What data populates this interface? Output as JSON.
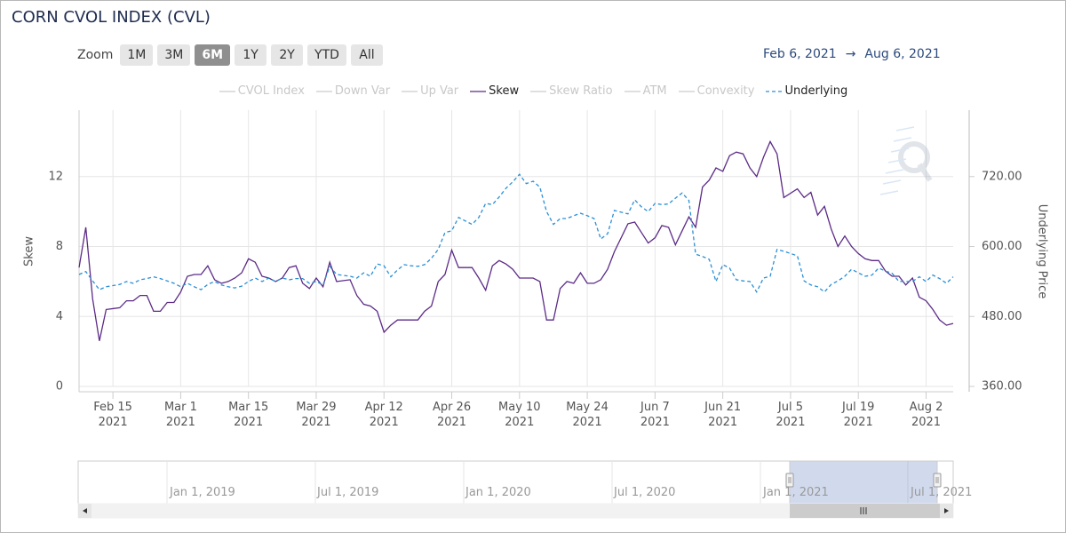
{
  "chart_data": {
    "type": "line",
    "title": "CORN CVOL INDEX (CVL)",
    "x": [
      "2021-02-08",
      "2021-02-09",
      "2021-02-10",
      "2021-02-11",
      "2021-02-12",
      "2021-02-16",
      "2021-02-17",
      "2021-02-18",
      "2021-02-19",
      "2021-02-22",
      "2021-02-23",
      "2021-02-24",
      "2021-02-25",
      "2021-02-26",
      "2021-03-01",
      "2021-03-02",
      "2021-03-03",
      "2021-03-04",
      "2021-03-05",
      "2021-03-08",
      "2021-03-09",
      "2021-03-10",
      "2021-03-11",
      "2021-03-12",
      "2021-03-15",
      "2021-03-16",
      "2021-03-17",
      "2021-03-18",
      "2021-03-19",
      "2021-03-22",
      "2021-03-23",
      "2021-03-24",
      "2021-03-25",
      "2021-03-26",
      "2021-03-29",
      "2021-03-30",
      "2021-03-31",
      "2021-04-01",
      "2021-04-05",
      "2021-04-06",
      "2021-04-07",
      "2021-04-08",
      "2021-04-09",
      "2021-04-12",
      "2021-04-13",
      "2021-04-14",
      "2021-04-15",
      "2021-04-16",
      "2021-04-19",
      "2021-04-20",
      "2021-04-21",
      "2021-04-22",
      "2021-04-23",
      "2021-04-26",
      "2021-04-27",
      "2021-04-28",
      "2021-04-29",
      "2021-04-30",
      "2021-05-03",
      "2021-05-04",
      "2021-05-05",
      "2021-05-06",
      "2021-05-07",
      "2021-05-10",
      "2021-05-11",
      "2021-05-12",
      "2021-05-13",
      "2021-05-14",
      "2021-05-17",
      "2021-05-18",
      "2021-05-19",
      "2021-05-20",
      "2021-05-21",
      "2021-05-24",
      "2021-05-25",
      "2021-05-26",
      "2021-05-27",
      "2021-05-28",
      "2021-06-01",
      "2021-06-02",
      "2021-06-03",
      "2021-06-04",
      "2021-06-07",
      "2021-06-08",
      "2021-06-09",
      "2021-06-10",
      "2021-06-11",
      "2021-06-14",
      "2021-06-15",
      "2021-06-16",
      "2021-06-17",
      "2021-06-18",
      "2021-06-21",
      "2021-06-22",
      "2021-06-23",
      "2021-06-24",
      "2021-06-25",
      "2021-06-28",
      "2021-06-29",
      "2021-06-30",
      "2021-07-01",
      "2021-07-02",
      "2021-07-06",
      "2021-07-07",
      "2021-07-08",
      "2021-07-09",
      "2021-07-12",
      "2021-07-13",
      "2021-07-14",
      "2021-07-15",
      "2021-07-16",
      "2021-07-19",
      "2021-07-20",
      "2021-07-21",
      "2021-07-22",
      "2021-07-23",
      "2021-07-26",
      "2021-07-27",
      "2021-07-28",
      "2021-07-29",
      "2021-07-30",
      "2021-08-02",
      "2021-08-03",
      "2021-08-04",
      "2021-08-05",
      "2021-08-06"
    ],
    "xlim": [
      "2021-02-08",
      "2021-08-06"
    ],
    "xticks": [
      {
        "value": "2021-02-15",
        "label": "Feb 15\n2021"
      },
      {
        "value": "2021-03-01",
        "label": "Mar 1\n2021"
      },
      {
        "value": "2021-03-15",
        "label": "Mar 15\n2021"
      },
      {
        "value": "2021-03-29",
        "label": "Mar 29\n2021"
      },
      {
        "value": "2021-04-12",
        "label": "Apr 12\n2021"
      },
      {
        "value": "2021-04-26",
        "label": "Apr 26\n2021"
      },
      {
        "value": "2021-05-10",
        "label": "May 10\n2021"
      },
      {
        "value": "2021-05-24",
        "label": "May 24\n2021"
      },
      {
        "value": "2021-06-07",
        "label": "Jun 7\n2021"
      },
      {
        "value": "2021-06-21",
        "label": "Jun 21\n2021"
      },
      {
        "value": "2021-07-05",
        "label": "Jul 5\n2021"
      },
      {
        "value": "2021-07-19",
        "label": "Jul 19\n2021"
      },
      {
        "value": "2021-08-02",
        "label": "Aug 2\n2021"
      }
    ],
    "ylabel": "Skew",
    "y2label": "Underlying Price",
    "ylim": [
      0,
      15.8
    ],
    "yticks": [
      0,
      4,
      8,
      12
    ],
    "y2lim": [
      360,
      834
    ],
    "y2ticks": [
      {
        "value": 360,
        "label": "360.00"
      },
      {
        "value": 480,
        "label": "480.00"
      },
      {
        "value": 600,
        "label": "600.00"
      },
      {
        "value": 720,
        "label": "720.00"
      }
    ],
    "grid": true,
    "legend_position": "top",
    "series": [
      {
        "name": "CVOL Index",
        "visible": false
      },
      {
        "name": "Down Var",
        "visible": false
      },
      {
        "name": "Up Var",
        "visible": false
      },
      {
        "name": "Skew",
        "visible": true,
        "color": "#5b2a86",
        "values": [
          6.8,
          9.1,
          5.0,
          2.6,
          4.4,
          4.5,
          4.9,
          4.9,
          5.2,
          5.2,
          4.3,
          4.3,
          4.8,
          4.8,
          5.4,
          6.3,
          6.4,
          6.4,
          6.9,
          6.1,
          5.9,
          6.0,
          6.2,
          6.5,
          7.3,
          7.1,
          6.3,
          6.2,
          6.0,
          6.2,
          6.8,
          6.9,
          5.9,
          5.6,
          6.2,
          5.7,
          7.1,
          6.0,
          6.1,
          5.2,
          4.7,
          4.6,
          4.3,
          3.1,
          3.5,
          3.8,
          3.8,
          3.8,
          3.8,
          4.3,
          4.6,
          6.0,
          6.4,
          7.8,
          6.8,
          6.8,
          6.8,
          6.2,
          5.5,
          6.9,
          7.2,
          7.0,
          6.7,
          6.2,
          6.2,
          6.2,
          6.0,
          3.8,
          3.8,
          5.6,
          6.0,
          5.9,
          6.5,
          5.9,
          5.9,
          6.1,
          6.7,
          7.7,
          9.3,
          9.4,
          8.8,
          8.2,
          8.5,
          9.2,
          9.1,
          8.1,
          8.9,
          9.7,
          9.1,
          11.4,
          11.8,
          12.5,
          12.3,
          13.2,
          13.4,
          13.3,
          12.5,
          12.0,
          13.1,
          14.0,
          13.3,
          10.8,
          11.3,
          10.8,
          11.1,
          9.8,
          10.3,
          9.0,
          8.0,
          8.6,
          8.0,
          7.6,
          7.3,
          7.2,
          7.2,
          6.6,
          6.3,
          6.3,
          5.8,
          6.2,
          5.1,
          4.9,
          4.4,
          3.8,
          3.5,
          3.6
        ]
      },
      {
        "name": "Skew Ratio",
        "visible": false
      },
      {
        "name": "ATM",
        "visible": false
      },
      {
        "name": "Convexity",
        "visible": false
      },
      {
        "name": "Underlying",
        "visible": true,
        "color": "#2a8fd6",
        "dashed": true,
        "axis": "y2",
        "values": [
          552,
          557,
          541,
          526,
          531,
          535,
          540,
          537,
          543,
          545,
          548,
          545,
          541,
          537,
          531,
          537,
          531,
          526,
          535,
          540,
          534,
          531,
          529,
          532,
          540,
          546,
          540,
          546,
          540,
          546,
          543,
          545,
          545,
          537,
          540,
          534,
          566,
          552,
          549,
          546,
          555,
          549,
          570,
          567,
          548,
          560,
          569,
          567,
          566,
          569,
          580,
          595,
          624,
          627,
          650,
          644,
          638,
          650,
          674,
          672,
          685,
          700,
          711,
          724,
          708,
          712,
          702,
          660,
          638,
          648,
          648,
          653,
          657,
          653,
          648,
          613,
          622,
          662,
          656,
          680,
          668,
          660,
          674,
          672,
          673,
          683,
          692,
          679,
          587,
          583,
          578,
          540,
          569,
          563,
          543,
          541,
          540,
          522,
          546,
          549,
          595,
          592,
          584,
          541,
          534,
          531,
          522,
          535,
          541,
          549,
          561,
          555,
          549,
          551,
          563,
          558,
          554,
          540,
          540,
          540,
          548,
          540,
          551,
          545,
          537,
          548
        ]
      }
    ]
  },
  "ui": {
    "zoom_label": "Zoom",
    "zoom_buttons": [
      "1M",
      "3M",
      "6M",
      "1Y",
      "2Y",
      "YTD",
      "All"
    ],
    "zoom_selected": 2,
    "range_from": "Feb 6, 2021",
    "range_arrow": "→",
    "range_to": "Aug 6, 2021"
  },
  "navigator": {
    "labels": [
      "Jan 1, 2019",
      "Jul 1, 2019",
      "Jan 1, 2020",
      "Jul 1, 2020",
      "Jan 1, 2021",
      "Jul 1, 2021"
    ]
  }
}
